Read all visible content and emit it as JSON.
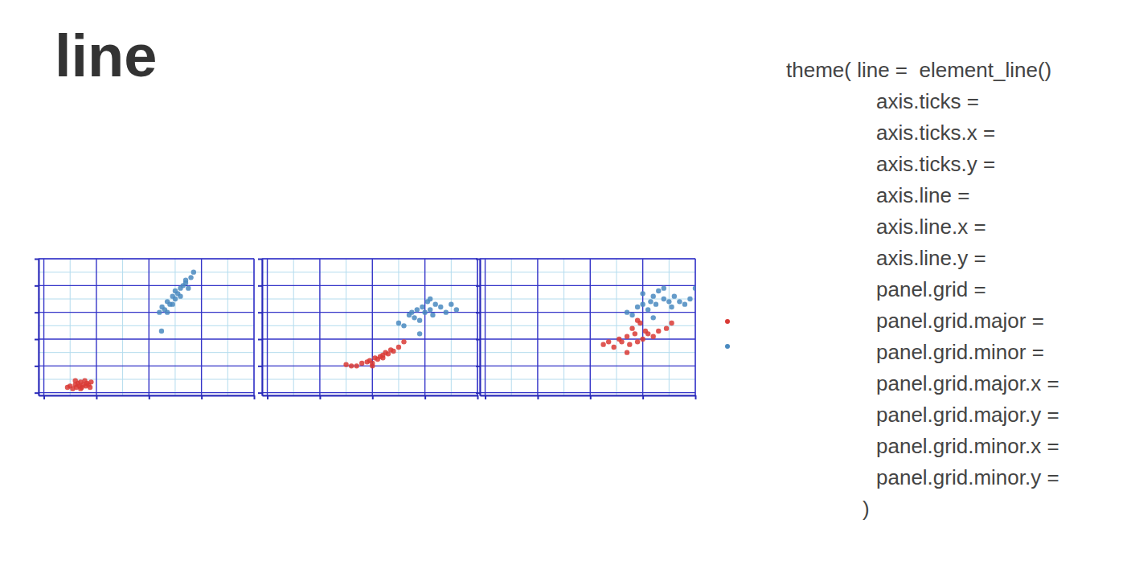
{
  "slide": {
    "title": "line",
    "code": [
      "theme( line =  element_line()",
      "axis.ticks =",
      "axis.ticks.x =",
      "axis.ticks.y =",
      "axis.line =",
      "axis.line.x =",
      "axis.line.y =",
      "panel.grid =",
      "panel.grid.major =",
      "panel.grid.minor =",
      "panel.grid.major.x =",
      "panel.grid.major.y =",
      "panel.grid.minor.x =",
      "panel.grid.minor.y =",
      ")"
    ]
  },
  "chart_data": [
    {
      "type": "scatter",
      "xlim": [
        -0.1,
        4.0
      ],
      "ylim": [
        -0.1,
        5
      ],
      "xticks": [
        0,
        1,
        2,
        3,
        4
      ],
      "yticks": [
        0,
        1,
        2,
        3,
        4,
        5
      ],
      "grid": true,
      "tick_labels": false,
      "series": [
        {
          "color": "#d93a35",
          "marker": "circle",
          "x": [
            0.45,
            0.5,
            0.55,
            0.6,
            0.62,
            0.65,
            0.68,
            0.7,
            0.72,
            0.75,
            0.78,
            0.8,
            0.82,
            0.85,
            0.88,
            0.9,
            0.7,
            0.6
          ],
          "values": [
            0.2,
            0.25,
            0.15,
            0.3,
            0.2,
            0.35,
            0.25,
            0.4,
            0.2,
            0.3,
            0.45,
            0.25,
            0.35,
            0.3,
            0.2,
            0.4,
            0.15,
            0.45
          ]
        },
        {
          "color": "#4a8ac0",
          "marker": "circle",
          "x": [
            2.2,
            2.25,
            2.3,
            2.35,
            2.4,
            2.45,
            2.5,
            2.5,
            2.55,
            2.6,
            2.6,
            2.65,
            2.7,
            2.75,
            2.8,
            2.85,
            2.35,
            2.24,
            2.7,
            2.45
          ],
          "values": [
            3.0,
            3.2,
            3.1,
            3.4,
            3.3,
            3.6,
            3.5,
            3.8,
            3.7,
            3.9,
            3.6,
            4.0,
            4.1,
            3.9,
            4.3,
            4.5,
            3.0,
            2.3,
            4.2,
            3.3
          ]
        }
      ]
    },
    {
      "type": "scatter",
      "xlim": [
        -0.1,
        4.0
      ],
      "ylim": [
        -0.1,
        5
      ],
      "xticks": [
        0,
        1,
        2,
        3,
        4
      ],
      "yticks": [
        0,
        1,
        2,
        3,
        4,
        5
      ],
      "grid": true,
      "tick_labels": false,
      "series": [
        {
          "color": "#d93a35",
          "marker": "circle",
          "x": [
            1.5,
            1.6,
            1.7,
            1.8,
            1.9,
            1.95,
            2.0,
            2.05,
            2.1,
            2.15,
            2.2,
            2.25,
            2.3,
            2.35,
            2.4,
            2.5,
            2.6,
            2.0,
            2.2
          ],
          "values": [
            1.05,
            1.0,
            1.0,
            1.1,
            1.15,
            1.2,
            1.1,
            1.3,
            1.25,
            1.35,
            1.3,
            1.5,
            1.45,
            1.6,
            1.55,
            1.7,
            1.9,
            1.0,
            1.4
          ]
        },
        {
          "color": "#4a8ac0",
          "marker": "circle",
          "x": [
            2.5,
            2.6,
            2.7,
            2.75,
            2.8,
            2.85,
            2.9,
            2.95,
            3.0,
            3.05,
            3.1,
            3.15,
            3.2,
            3.3,
            3.4,
            3.5,
            3.6,
            2.9,
            3.1
          ],
          "values": [
            2.6,
            2.5,
            2.9,
            3.0,
            2.8,
            3.1,
            2.7,
            3.2,
            3.0,
            3.4,
            3.1,
            2.9,
            3.3,
            3.2,
            3.0,
            3.3,
            3.1,
            2.2,
            3.5
          ]
        }
      ]
    },
    {
      "type": "scatter",
      "xlim": [
        -0.1,
        4.0
      ],
      "ylim": [
        -0.1,
        5
      ],
      "xticks": [
        0,
        1,
        2,
        3,
        4
      ],
      "yticks": [
        0,
        1,
        2,
        3,
        4,
        5
      ],
      "grid": true,
      "tick_labels": false,
      "legend": "right",
      "series": [
        {
          "color": "#d93a35",
          "marker": "circle",
          "x": [
            2.25,
            2.35,
            2.45,
            2.55,
            2.6,
            2.7,
            2.75,
            2.8,
            2.85,
            2.9,
            2.95,
            3.0,
            3.05,
            3.1,
            3.2,
            3.3,
            3.45,
            3.55,
            2.7,
            2.9
          ],
          "values": [
            1.8,
            1.9,
            1.7,
            2.0,
            1.9,
            2.1,
            1.8,
            2.4,
            2.2,
            1.9,
            2.6,
            2.0,
            2.3,
            2.2,
            2.1,
            2.3,
            2.4,
            2.6,
            1.5,
            2.7
          ]
        },
        {
          "color": "#4a8ac0",
          "marker": "circle",
          "x": [
            2.7,
            2.8,
            2.9,
            3.0,
            3.1,
            3.15,
            3.2,
            3.25,
            3.3,
            3.4,
            3.5,
            3.55,
            3.6,
            3.7,
            3.8,
            3.9,
            4.0,
            3.2,
            3.4,
            3.0
          ],
          "values": [
            3.0,
            2.9,
            3.2,
            3.3,
            3.1,
            3.4,
            3.6,
            3.3,
            3.8,
            3.5,
            3.4,
            3.2,
            3.6,
            3.4,
            3.3,
            3.5,
            3.9,
            2.8,
            3.9,
            3.7
          ]
        }
      ]
    }
  ]
}
